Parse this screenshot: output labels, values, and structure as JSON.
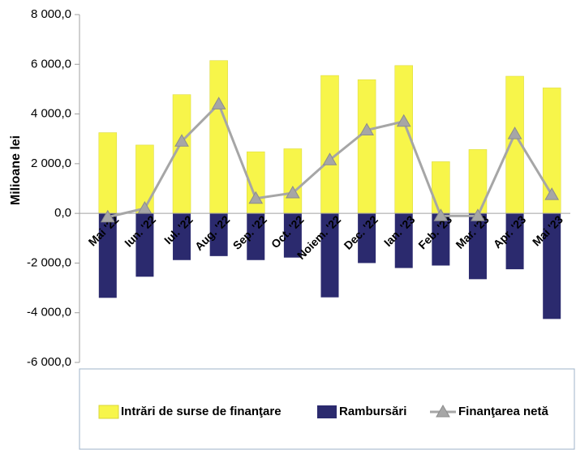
{
  "chart_data": {
    "type": "bar",
    "y_label": "Milioane lei",
    "categories": [
      "Mai '22",
      "Iun. '22",
      "Iul. '22",
      "Aug. '22",
      "Sep. '22",
      "Oct. '22",
      "Noiem. '22",
      "Dec. '22",
      "Ian. '23",
      "Feb. '23",
      "Mar. '23",
      "Apr. '23",
      "Mai '23"
    ],
    "series": [
      {
        "name": "Intrări de surse de finanţare",
        "type": "bar",
        "color": "#f7f54a",
        "values": [
          3250,
          2750,
          4780,
          6150,
          2480,
          2600,
          5550,
          5380,
          5950,
          2080,
          2570,
          5520,
          5050
        ]
      },
      {
        "name": "Rambursări",
        "type": "bar",
        "color": "#2b2a6e",
        "values": [
          -3400,
          -2550,
          -1880,
          -1720,
          -1880,
          -1780,
          -3380,
          -2000,
          -2200,
          -2100,
          -2650,
          -2250,
          -4250
        ]
      },
      {
        "name": "Finanţarea netă",
        "type": "line",
        "color": "#a6a6a6",
        "values": [
          -150,
          200,
          2900,
          4400,
          600,
          820,
          2150,
          3350,
          3700,
          -100,
          -100,
          3200,
          750
        ]
      }
    ],
    "ylim": [
      -6000,
      8000
    ],
    "yticks": [
      {
        "value": -6000,
        "label": "-6 000,0"
      },
      {
        "value": -4000,
        "label": "-4 000,0"
      },
      {
        "value": -2000,
        "label": "-2 000,0"
      },
      {
        "value": 0,
        "label": "0,0"
      },
      {
        "value": 2000,
        "label": "2 000,0"
      },
      {
        "value": 4000,
        "label": "4 000,0"
      },
      {
        "value": 6000,
        "label": "6 000,0"
      },
      {
        "value": 8000,
        "label": "8 000,0"
      }
    ],
    "legend": "bottom"
  }
}
